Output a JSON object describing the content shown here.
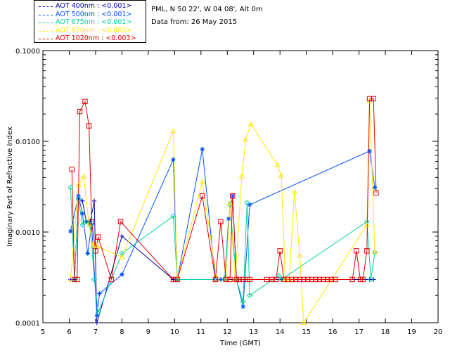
{
  "legend": [
    {
      "label": "AOT  400nm : <0.001>",
      "color": "#0000b4"
    },
    {
      "label": "AOT  500nm : <0.001>",
      "color": "#0050ff"
    },
    {
      "label": "AOT  675nm : <0.001>",
      "color": "#00d2a0"
    },
    {
      "label": "AOT  870nm : <0.003>",
      "color": "#ffe600"
    },
    {
      "label": "AOT 1020nm : <0.003>",
      "color": "#e60000"
    }
  ],
  "info": {
    "location": "PML, N 50 22', W 04 08', Alt 0m",
    "date": "Data from: 26 May 2015"
  },
  "chart_data": {
    "type": "line",
    "xlabel": "Time (GMT)",
    "ylabel": "Imaginary Part of Refractive Index",
    "xlim": [
      5,
      20
    ],
    "ylim": [
      0.0001,
      0.1
    ],
    "yscale": "log",
    "xticks": [
      5,
      6,
      7,
      8,
      9,
      10,
      11,
      12,
      13,
      14,
      15,
      16,
      17,
      18,
      19,
      20
    ],
    "yticks": [
      {
        "value": 0.0001,
        "label": "0.0001"
      },
      {
        "value": 0.001,
        "label": "0.0010"
      },
      {
        "value": 0.01,
        "label": "0.0100"
      },
      {
        "value": 0.1,
        "label": "0.1000"
      }
    ],
    "series": [
      {
        "name": "AOT 400nm",
        "color": "#0000b4",
        "marker": "plus",
        "points": [
          [
            6.05,
            0.0003
          ],
          [
            6.2,
            0.0003
          ],
          [
            6.35,
            0.0024
          ],
          [
            6.5,
            0.0022
          ],
          [
            6.65,
            0.0013
          ],
          [
            6.8,
            0.0013
          ],
          [
            6.95,
            0.0022
          ],
          [
            7.05,
            0.0001
          ],
          [
            8.0,
            0.0009
          ],
          [
            9.95,
            0.0003
          ],
          [
            10.1,
            0.0003
          ],
          [
            17.4,
            0.0003
          ],
          [
            17.55,
            0.0003
          ]
        ]
      },
      {
        "name": "AOT 500nm",
        "color": "#0050ff",
        "marker": "star",
        "points": [
          [
            6.05,
            0.00102
          ],
          [
            6.35,
            0.0025
          ],
          [
            6.5,
            0.0016
          ],
          [
            6.7,
            0.00058
          ],
          [
            6.85,
            0.0012
          ],
          [
            7.05,
            0.00012
          ],
          [
            7.15,
            0.00021
          ],
          [
            8.0,
            0.00034
          ],
          [
            9.95,
            0.0063
          ],
          [
            10.1,
            0.0003
          ],
          [
            11.05,
            0.0082
          ],
          [
            11.55,
            0.0003
          ],
          [
            11.75,
            0.0003
          ],
          [
            11.9,
            0.0003
          ],
          [
            12.05,
            0.0014
          ],
          [
            12.2,
            0.0025
          ],
          [
            12.35,
            0.0003
          ],
          [
            12.6,
            0.00015
          ],
          [
            12.85,
            0.002
          ],
          [
            17.4,
            0.0078
          ],
          [
            17.6,
            0.0031
          ]
        ]
      },
      {
        "name": "AOT 675nm",
        "color": "#00d2a0",
        "marker": "diamond",
        "points": [
          [
            6.05,
            0.0031
          ],
          [
            6.2,
            0.0003
          ],
          [
            6.35,
            0.0023
          ],
          [
            6.5,
            0.0012
          ],
          [
            6.65,
            0.0013
          ],
          [
            6.8,
            0.0012
          ],
          [
            6.95,
            0.0003
          ],
          [
            7.1,
            0.00013
          ],
          [
            8.0,
            0.00058
          ],
          [
            9.95,
            0.0015
          ],
          [
            10.1,
            0.0003
          ],
          [
            11.9,
            0.0003
          ],
          [
            12.1,
            0.002
          ],
          [
            12.35,
            0.0003
          ],
          [
            12.6,
            0.00017
          ],
          [
            12.75,
            0.0021
          ],
          [
            12.85,
            0.0002
          ],
          [
            13.95,
            0.00033
          ],
          [
            14.05,
            0.0003
          ],
          [
            17.3,
            0.0013
          ],
          [
            17.45,
            0.0003
          ],
          [
            17.6,
            0.0006
          ]
        ]
      },
      {
        "name": "AOT 870nm",
        "color": "#ffe600",
        "marker": "triangle",
        "points": [
          [
            6.05,
            0.0003
          ],
          [
            6.35,
            0.0033
          ],
          [
            6.55,
            0.0041
          ],
          [
            6.75,
            0.0012
          ],
          [
            6.9,
            0.0007
          ],
          [
            7.05,
            0.0007
          ],
          [
            8.0,
            0.00053
          ],
          [
            9.95,
            0.013
          ],
          [
            10.1,
            0.0003
          ],
          [
            11.05,
            0.0036
          ],
          [
            11.6,
            0.0003
          ],
          [
            11.95,
            0.0003
          ],
          [
            12.1,
            0.0021
          ],
          [
            12.3,
            0.0003
          ],
          [
            12.55,
            0.0041
          ],
          [
            12.7,
            0.0105
          ],
          [
            12.9,
            0.0155
          ],
          [
            13.9,
            0.0055
          ],
          [
            14.05,
            0.0042
          ],
          [
            14.2,
            0.0003
          ],
          [
            14.35,
            0.0003
          ],
          [
            14.55,
            0.0028
          ],
          [
            14.75,
            0.00055
          ],
          [
            14.9,
            0.0001
          ],
          [
            17.3,
            0.0012
          ],
          [
            17.4,
            0.028
          ],
          [
            17.6,
            0.0006
          ]
        ]
      },
      {
        "name": "AOT 1020nm",
        "color": "#e60000",
        "marker": "square",
        "points": [
          [
            6.1,
            0.0049
          ],
          [
            6.2,
            0.0003
          ],
          [
            6.3,
            0.0003
          ],
          [
            6.4,
            0.0213
          ],
          [
            6.6,
            0.0275
          ],
          [
            6.75,
            0.0148
          ],
          [
            6.85,
            0.0013
          ],
          [
            7.0,
            0.00062
          ],
          [
            7.1,
            0.00088
          ],
          [
            7.6,
            0.0003
          ],
          [
            7.95,
            0.0013
          ],
          [
            9.95,
            0.0003
          ],
          [
            10.1,
            0.0003
          ],
          [
            11.05,
            0.0025
          ],
          [
            11.55,
            0.0003
          ],
          [
            11.75,
            0.0013
          ],
          [
            11.95,
            0.0003
          ],
          [
            12.1,
            0.0003
          ],
          [
            12.2,
            0.0025
          ],
          [
            12.35,
            0.0003
          ],
          [
            12.45,
            0.0003
          ],
          [
            12.6,
            0.0003
          ],
          [
            12.75,
            0.0003
          ],
          [
            12.85,
            0.0003
          ],
          [
            13.5,
            0.0003
          ],
          [
            13.7,
            0.0003
          ],
          [
            13.85,
            0.0003
          ],
          [
            14.0,
            0.00062
          ],
          [
            14.15,
            0.0003
          ],
          [
            14.3,
            0.0003
          ],
          [
            14.45,
            0.0003
          ],
          [
            14.6,
            0.0003
          ],
          [
            14.75,
            0.0003
          ],
          [
            14.9,
            0.0003
          ],
          [
            15.05,
            0.0003
          ],
          [
            15.2,
            0.0003
          ],
          [
            15.35,
            0.0003
          ],
          [
            15.5,
            0.0003
          ],
          [
            15.65,
            0.0003
          ],
          [
            15.8,
            0.0003
          ],
          [
            15.95,
            0.0003
          ],
          [
            16.1,
            0.0003
          ],
          [
            16.75,
            0.0003
          ],
          [
            16.9,
            0.00062
          ],
          [
            17.05,
            0.0003
          ],
          [
            17.15,
            0.0003
          ],
          [
            17.3,
            0.00062
          ],
          [
            17.4,
            0.0295
          ],
          [
            17.55,
            0.0295
          ],
          [
            17.65,
            0.0027
          ]
        ]
      }
    ]
  }
}
